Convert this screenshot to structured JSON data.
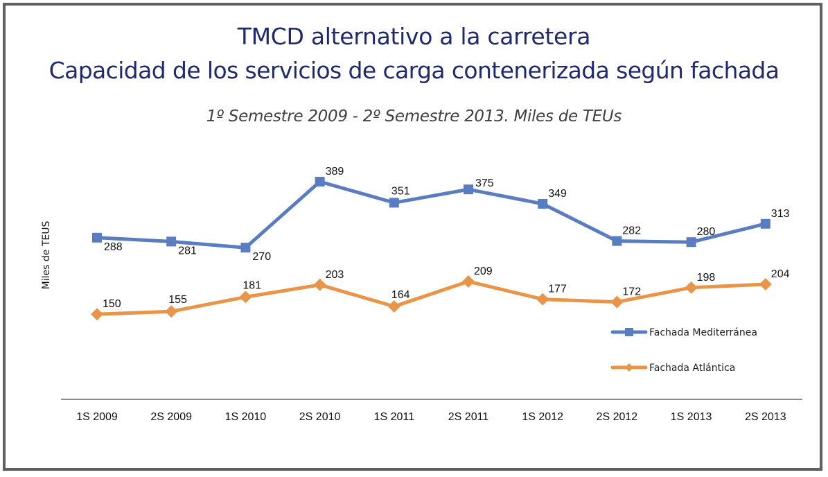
{
  "chart_data": {
    "type": "line",
    "title": "TMCD alternativo a la carretera",
    "title_line2": "Capacidad de los servicios de carga contenerizada según fachada",
    "subtitle": "1º Semestre 2009 - 2º Semestre 2013. Miles de TEUs",
    "xlabel": "",
    "ylabel": "Miles de TEUS",
    "categories": [
      "1S 2009",
      "2S 2009",
      "1S 2010",
      "2S 2010",
      "1S 2011",
      "2S 2011",
      "1S 2012",
      "2S 2012",
      "1S 2013",
      "2S 2013"
    ],
    "series": [
      {
        "name": "Fachada Mediterránea",
        "color": "#5a7dc2",
        "marker": "square",
        "values": [
          288,
          281,
          270,
          389,
          351,
          375,
          349,
          282,
          280,
          313
        ],
        "label_positions": [
          "below-right",
          "below-right",
          "below-right",
          "above-right",
          "above",
          "right",
          "above-right",
          "above-right",
          "above-right",
          "above-right"
        ]
      },
      {
        "name": "Fachada Atlántica",
        "color": "#e8954a",
        "marker": "diamond",
        "values": [
          150,
          155,
          181,
          203,
          164,
          209,
          177,
          172,
          198,
          204
        ],
        "label_positions": [
          "above-right",
          "above",
          "above",
          "above-right",
          "above",
          "above-right",
          "above-right",
          "above-right",
          "above-right",
          "above-right"
        ]
      }
    ],
    "ylim": [
      0,
      400
    ],
    "grid": false,
    "y_ticks_visible": false,
    "legend_position": "right"
  }
}
